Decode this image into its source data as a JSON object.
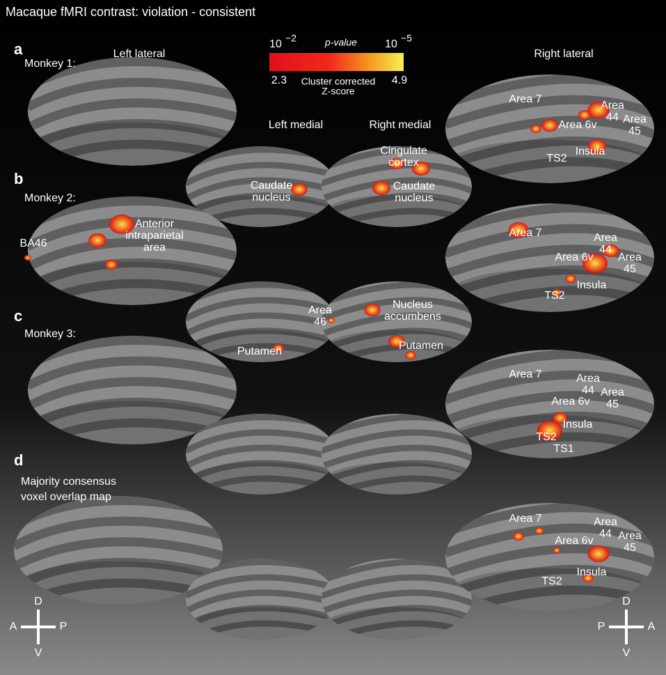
{
  "title": "Macaque fMRI contrast: violation - consistent",
  "colorbar": {
    "min_base": "10",
    "min_exp": "−2",
    "p_label": "p-value",
    "max_base": "10",
    "max_exp": "−5",
    "z_min": "2.3",
    "z_max": "4.9",
    "z_label": [
      "Cluster corrected",
      "Z-score"
    ]
  },
  "views": [
    "Left lateral",
    "Left medial",
    "Right medial",
    "Right lateral"
  ],
  "panels": [
    {
      "label": "a",
      "subject": [
        "Monkey 1:"
      ],
      "annotations": [
        {
          "lines": [
            "Area 7"
          ]
        },
        {
          "lines": [
            "Area",
            "44"
          ]
        },
        {
          "lines": [
            "Area",
            "45"
          ]
        },
        {
          "lines": [
            "Area 6v"
          ]
        },
        {
          "lines": [
            "Insula"
          ]
        },
        {
          "lines": [
            "TS2"
          ]
        },
        {
          "lines": [
            "Cingulate",
            "cortex"
          ]
        },
        {
          "lines": [
            "Caudate",
            "nucleus"
          ]
        },
        {
          "lines": [
            "Caudate",
            "nucleus"
          ]
        }
      ]
    },
    {
      "label": "b",
      "subject": [
        "Monkey 2:"
      ],
      "annotations": [
        {
          "lines": [
            "BA46"
          ]
        },
        {
          "lines": [
            "Anterior",
            "intraparietal",
            "area"
          ]
        },
        {
          "lines": [
            "Area 7"
          ]
        },
        {
          "lines": [
            "Area",
            "44"
          ]
        },
        {
          "lines": [
            "Area 6v"
          ]
        },
        {
          "lines": [
            "Area",
            "45"
          ]
        },
        {
          "lines": [
            "Insula"
          ]
        },
        {
          "lines": [
            "TS2"
          ]
        },
        {
          "lines": [
            "Area",
            "46"
          ]
        },
        {
          "lines": [
            "Putamen"
          ]
        },
        {
          "lines": [
            "Nucleus",
            "accumbens"
          ]
        },
        {
          "lines": [
            "Putamen"
          ]
        }
      ]
    },
    {
      "label": "c",
      "subject": [
        "Monkey 3:"
      ],
      "annotations": [
        {
          "lines": [
            "Area 7"
          ]
        },
        {
          "lines": [
            "Area",
            "44"
          ]
        },
        {
          "lines": [
            "Area",
            "45"
          ]
        },
        {
          "lines": [
            "Area 6v"
          ]
        },
        {
          "lines": [
            "Insula"
          ]
        },
        {
          "lines": [
            "TS2"
          ]
        },
        {
          "lines": [
            "TS1"
          ]
        }
      ]
    },
    {
      "label": "d",
      "subject": [
        "Majority consensus",
        "voxel overlap map"
      ],
      "annotations": [
        {
          "lines": [
            "Area 7"
          ]
        },
        {
          "lines": [
            "Area",
            "44"
          ]
        },
        {
          "lines": [
            "Area 6v"
          ]
        },
        {
          "lines": [
            "Area",
            "45"
          ]
        },
        {
          "lines": [
            "Insula"
          ]
        },
        {
          "lines": [
            "TS2"
          ]
        }
      ]
    }
  ],
  "orientation_left": {
    "up": "D",
    "down": "V",
    "left": "A",
    "right": "P"
  },
  "orientation_right": {
    "up": "D",
    "down": "V",
    "left": "P",
    "right": "A"
  }
}
